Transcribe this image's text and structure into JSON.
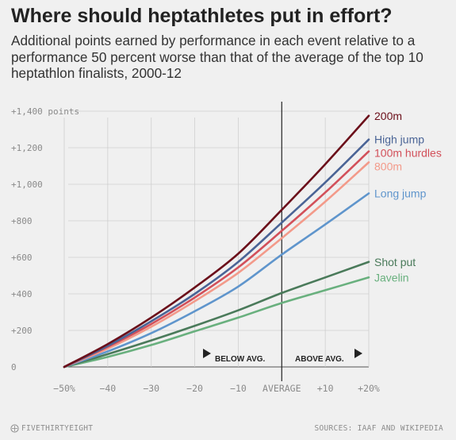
{
  "title": "Where should heptathletes put in effort?",
  "subtitle": "Additional points earned by performance in each event relative to a performance 50 percent worse than that of the average of the top 10 heptathlon finalists, 2000-12",
  "footer": {
    "brand": "FIVETHIRTYEIGHT",
    "sources": "SOURCES: IAAF AND WIKIPEDIA"
  },
  "chart_data": {
    "type": "line",
    "title": "Where should heptathletes put in effort?",
    "subtitle": "Additional points earned by performance in each event relative to a performance 50 percent worse than that of the average of the top 10 heptathlon finalists, 2000-12",
    "xlabel": "",
    "ylabel": "",
    "xlim": [
      -50,
      20
    ],
    "ylim": [
      0,
      1400
    ],
    "x_ticks": [
      {
        "value": -50,
        "label": "−50%"
      },
      {
        "value": -40,
        "label": "−40"
      },
      {
        "value": -30,
        "label": "−30"
      },
      {
        "value": -20,
        "label": "−20"
      },
      {
        "value": -10,
        "label": "−10"
      },
      {
        "value": 0,
        "label": "AVERAGE"
      },
      {
        "value": 10,
        "label": "+10"
      },
      {
        "value": 20,
        "label": "+20%"
      }
    ],
    "y_ticks": [
      {
        "value": 0,
        "label": "0"
      },
      {
        "value": 200,
        "label": "+200"
      },
      {
        "value": 400,
        "label": "+400"
      },
      {
        "value": 600,
        "label": "+600"
      },
      {
        "value": 800,
        "label": "+800"
      },
      {
        "value": 1000,
        "label": "+1,000"
      },
      {
        "value": 1200,
        "label": "+1,200"
      },
      {
        "value": 1400,
        "label": "+1,400 points"
      }
    ],
    "grid": true,
    "reference_line": {
      "x": 0
    },
    "annotations": {
      "below": "BELOW AVG.",
      "above": "ABOVE AVG."
    },
    "x": [
      -50,
      -40,
      -30,
      -20,
      -10,
      0,
      10,
      20
    ],
    "series": [
      {
        "name": "200m",
        "color": "#6b0f1a",
        "values": [
          0,
          125,
          270,
          435,
          620,
          860,
          1110,
          1375
        ]
      },
      {
        "name": "High jump",
        "color": "#4a6496",
        "values": [
          0,
          115,
          250,
          400,
          575,
          790,
          1010,
          1245
        ]
      },
      {
        "name": "100m hurdles",
        "color": "#d2505a",
        "values": [
          0,
          110,
          235,
          380,
          545,
          745,
          955,
          1180
        ]
      },
      {
        "name": "800m",
        "color": "#f39a8a",
        "values": [
          0,
          100,
          220,
          360,
          515,
          705,
          905,
          1120
        ]
      },
      {
        "name": "Long jump",
        "color": "#5f95cc",
        "values": [
          0,
          85,
          185,
          305,
          440,
          615,
          780,
          950
        ]
      },
      {
        "name": "Shot put",
        "color": "#4a7a5a",
        "values": [
          0,
          70,
          145,
          225,
          310,
          405,
          490,
          575
        ]
      },
      {
        "name": "Javelin",
        "color": "#69b07e",
        "values": [
          0,
          55,
          120,
          195,
          270,
          350,
          420,
          490
        ]
      }
    ]
  }
}
